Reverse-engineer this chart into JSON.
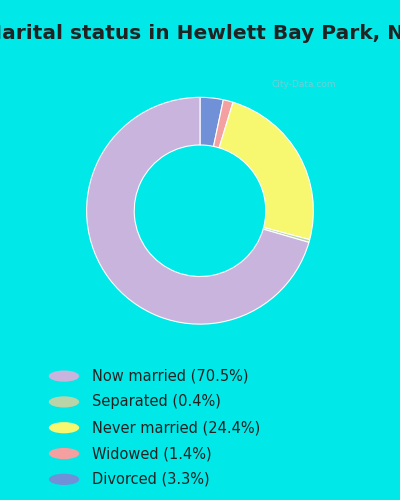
{
  "title": "Marital status in Hewlett Bay Park, NY",
  "slices": [
    {
      "label": "Now married (70.5%)",
      "value": 70.5,
      "color": "#C8B4DC"
    },
    {
      "label": "Separated (0.4%)",
      "value": 0.4,
      "color": "#B8D4A8"
    },
    {
      "label": "Never married (24.4%)",
      "value": 24.4,
      "color": "#F8F870"
    },
    {
      "label": "Widowed (1.4%)",
      "value": 1.4,
      "color": "#F4A0A0"
    },
    {
      "label": "Divorced (3.3%)",
      "value": 3.3,
      "color": "#7090D8"
    }
  ],
  "bg_cyan": "#00E8E8",
  "bg_chart_tl": "#C8EED8",
  "bg_chart_br": "#E8F4F0",
  "title_fontsize": 14.5,
  "legend_fontsize": 10.5,
  "donut_width": 0.42,
  "start_angle": 90,
  "title_color": "#222222",
  "legend_text_color": "#222222",
  "watermark_color": "#90C8D0",
  "watermark_alpha": 0.75
}
